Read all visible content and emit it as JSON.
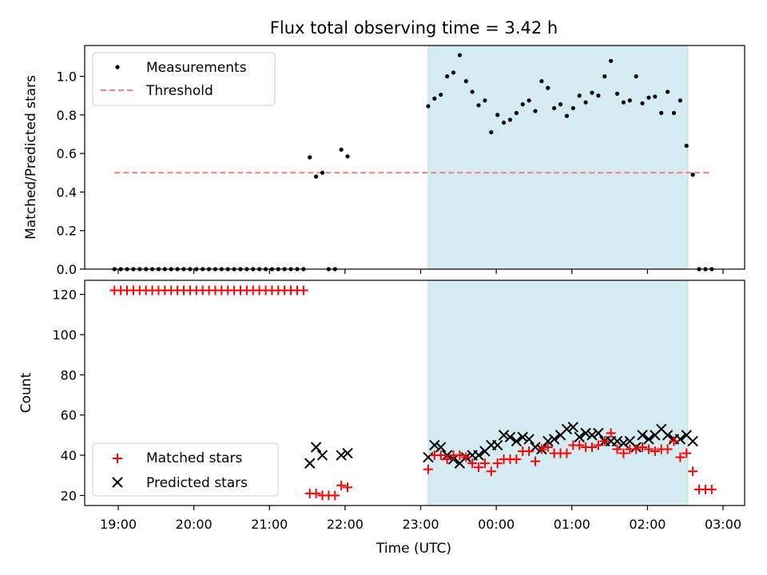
{
  "chart_data": [
    {
      "type": "scatter",
      "title": "Flux total observing time = 3.42 h",
      "ylabel": "Matched/Predicted stars",
      "xlabel": "",
      "ylim": [
        0,
        1.16
      ],
      "yticks": [
        "0.0",
        "0.2",
        "0.4",
        "0.6",
        "0.8",
        "1.0"
      ],
      "grid": false,
      "legend": "top-left",
      "shaded_interval": {
        "start": "23:06",
        "end": "02:32",
        "color": "#d4ebf1"
      },
      "series": [
        {
          "name": "Measurements",
          "marker": "dot",
          "color": "#000000",
          "x": [
            "18:57",
            "19:02",
            "19:07",
            "19:12",
            "19:17",
            "19:22",
            "19:27",
            "19:32",
            "19:37",
            "19:42",
            "19:47",
            "19:52",
            "19:57",
            "20:02",
            "20:07",
            "20:12",
            "20:17",
            "20:22",
            "20:27",
            "20:32",
            "20:37",
            "20:42",
            "20:47",
            "20:52",
            "20:57",
            "21:02",
            "21:07",
            "21:12",
            "21:17",
            "21:22",
            "21:27",
            "21:32",
            "21:37",
            "21:42",
            "21:47",
            "21:52",
            "21:57",
            "22:02",
            "23:06",
            "23:11",
            "23:16",
            "23:21",
            "23:26",
            "23:31",
            "23:36",
            "23:41",
            "23:46",
            "23:51",
            "23:56",
            "00:01",
            "00:06",
            "00:11",
            "00:16",
            "00:21",
            "00:26",
            "00:31",
            "00:36",
            "00:41",
            "00:46",
            "00:51",
            "00:56",
            "01:01",
            "01:06",
            "01:11",
            "01:16",
            "01:21",
            "01:26",
            "01:31",
            "01:36",
            "01:41",
            "01:46",
            "01:51",
            "01:56",
            "02:01",
            "02:06",
            "02:11",
            "02:16",
            "02:21",
            "02:26",
            "02:31",
            "02:36",
            "02:41",
            "02:46",
            "02:51"
          ],
          "y": [
            0,
            0,
            0,
            0,
            0,
            0,
            0,
            0,
            0,
            0,
            0,
            0,
            0,
            0,
            0,
            0,
            0,
            0,
            0,
            0,
            0,
            0,
            0,
            0,
            0,
            0,
            0,
            0,
            0,
            0,
            0,
            0.58,
            0.48,
            0.5,
            0,
            0,
            0.62,
            0.585,
            0.845,
            0.885,
            0.905,
            1.0,
            1.02,
            1.11,
            0.975,
            0.92,
            0.85,
            0.875,
            0.71,
            0.8,
            0.76,
            0.775,
            0.81,
            0.855,
            0.875,
            0.82,
            0.975,
            0.94,
            0.835,
            0.855,
            0.795,
            0.835,
            0.9,
            0.865,
            0.915,
            0.9,
            1.0,
            1.08,
            0.91,
            0.865,
            0.875,
            1.0,
            0.86,
            0.89,
            0.895,
            0.81,
            0.92,
            0.81,
            0.875,
            0.64,
            0.49,
            0,
            0,
            0
          ]
        },
        {
          "name": "Threshold",
          "marker": "dashed-line",
          "color": "#f08080",
          "x": [
            "18:57",
            "02:50"
          ],
          "y": [
            0.5,
            0.5
          ]
        }
      ]
    },
    {
      "type": "scatter",
      "title": "",
      "ylabel": "Count",
      "xlabel": "Time (UTC)",
      "ylim": [
        15,
        127
      ],
      "yticks": [
        "20",
        "40",
        "60",
        "80",
        "100",
        "120"
      ],
      "xticks": [
        "19:00",
        "20:00",
        "21:00",
        "22:00",
        "23:00",
        "00:00",
        "01:00",
        "02:00",
        "03:00"
      ],
      "grid": false,
      "legend": "bottom-left",
      "shaded_interval": {
        "start": "23:06",
        "end": "02:32",
        "color": "#d4ebf1"
      },
      "series": [
        {
          "name": "Matched stars",
          "marker": "plus",
          "color": "#ff0000",
          "x": [
            "18:57",
            "19:02",
            "19:07",
            "19:12",
            "19:17",
            "19:22",
            "19:27",
            "19:32",
            "19:37",
            "19:42",
            "19:47",
            "19:52",
            "19:57",
            "20:02",
            "20:07",
            "20:12",
            "20:17",
            "20:22",
            "20:27",
            "20:32",
            "20:37",
            "20:42",
            "20:47",
            "20:52",
            "20:57",
            "21:02",
            "21:07",
            "21:12",
            "21:17",
            "21:22",
            "21:27",
            "21:32",
            "21:37",
            "21:42",
            "21:47",
            "21:52",
            "21:57",
            "22:02",
            "23:06",
            "23:11",
            "23:16",
            "23:21",
            "23:26",
            "23:31",
            "23:36",
            "23:41",
            "23:46",
            "23:51",
            "23:56",
            "00:01",
            "00:06",
            "00:11",
            "00:16",
            "00:21",
            "00:26",
            "00:31",
            "00:36",
            "00:41",
            "00:46",
            "00:51",
            "00:56",
            "01:01",
            "01:06",
            "01:11",
            "01:16",
            "01:21",
            "01:26",
            "01:31",
            "01:36",
            "01:41",
            "01:46",
            "01:51",
            "01:56",
            "02:01",
            "02:06",
            "02:11",
            "02:16",
            "02:21",
            "02:26",
            "02:31",
            "02:36",
            "02:41",
            "02:46",
            "02:51"
          ],
          "y": [
            122,
            122,
            122,
            122,
            122,
            122,
            122,
            122,
            122,
            122,
            122,
            122,
            122,
            122,
            122,
            122,
            122,
            122,
            122,
            122,
            122,
            122,
            122,
            122,
            122,
            122,
            122,
            122,
            122,
            122,
            122,
            21,
            21,
            20,
            20,
            20,
            25,
            24,
            33,
            40,
            40,
            38,
            40,
            40,
            39,
            36,
            34,
            36,
            32,
            36,
            38,
            38,
            38,
            42,
            42,
            37,
            43,
            44,
            41,
            41,
            41,
            45,
            45,
            44,
            44,
            45,
            47,
            51,
            43,
            41,
            43,
            43,
            44,
            43,
            42,
            43,
            43,
            47,
            39,
            41,
            32,
            23,
            23,
            23
          ]
        },
        {
          "name": "Predicted stars",
          "marker": "x",
          "color": "#000000",
          "x": [
            "21:32",
            "21:37",
            "21:42",
            "21:57",
            "22:02",
            "23:06",
            "23:11",
            "23:16",
            "23:21",
            "23:26",
            "23:31",
            "23:36",
            "23:41",
            "23:46",
            "23:51",
            "23:56",
            "00:01",
            "00:06",
            "00:11",
            "00:16",
            "00:21",
            "00:26",
            "00:31",
            "00:36",
            "00:41",
            "00:46",
            "00:51",
            "00:56",
            "01:01",
            "01:06",
            "01:11",
            "01:16",
            "01:21",
            "01:26",
            "01:31",
            "01:36",
            "01:41",
            "01:46",
            "01:51",
            "01:56",
            "02:01",
            "02:06",
            "02:11",
            "02:16",
            "02:21",
            "02:26",
            "02:31",
            "02:36"
          ],
          "y": [
            36,
            44,
            40,
            40,
            41,
            39,
            45,
            44,
            40,
            38,
            36,
            39,
            40,
            40,
            42,
            45,
            45,
            50,
            49,
            47,
            49,
            48,
            44,
            43,
            47,
            48,
            50,
            53,
            54,
            49,
            51,
            50,
            51,
            47,
            47,
            47,
            46,
            47,
            44,
            50,
            48,
            50,
            53,
            50,
            48,
            48,
            50,
            47
          ]
        }
      ]
    }
  ]
}
